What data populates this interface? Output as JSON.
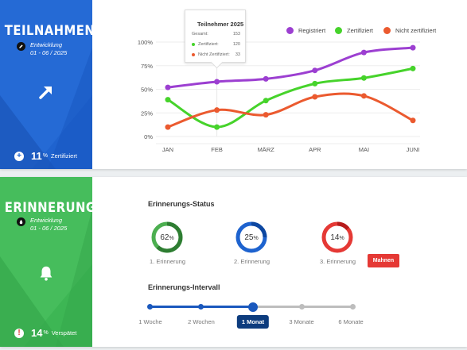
{
  "participation": {
    "title": "TEILNAHMEN",
    "subtitle_line1": "Entwicklung",
    "subtitle_line2": "01 - 06 / 2025",
    "trend_icon": "arrow-up-right-icon",
    "stat_value": "11",
    "stat_unit": "%",
    "stat_label": "Zertifiziert",
    "stat_icon": "plus-circle-icon",
    "color": "#1f63cf"
  },
  "chart_data": {
    "type": "line",
    "categories": [
      "JAN",
      "FEB",
      "MÄRZ",
      "APR",
      "MAI",
      "JUNI"
    ],
    "yticks": [
      "0%",
      "25%",
      "50%",
      "75%",
      "100%"
    ],
    "ylim": [
      0,
      100
    ],
    "legend_position": "top-right",
    "series": [
      {
        "name": "Registriert",
        "color": "#9c3fd1",
        "values": [
          52,
          58,
          61,
          70,
          89,
          94
        ]
      },
      {
        "name": "Zertifiziert",
        "color": "#46d32b",
        "values": [
          39,
          10,
          38,
          56,
          62,
          72
        ]
      },
      {
        "name": "Nicht zertifiziert",
        "color": "#eb5a2f",
        "values": [
          10,
          28,
          23,
          42,
          43,
          17
        ]
      }
    ]
  },
  "tooltip": {
    "title": "Teilnehmer 2025",
    "rows": [
      {
        "label": "Gesamt:",
        "value": "153",
        "color": ""
      },
      {
        "label": "Zertifiziert:",
        "value": "120",
        "color": "#46d32b"
      },
      {
        "label": "Nicht Zertifiziert:",
        "value": "33",
        "color": "#eb5a2f"
      }
    ]
  },
  "reminders": {
    "title": "ERINNERUNGEN",
    "subtitle_line1": "Entwicklung",
    "subtitle_line2": "01 - 06 / 2025",
    "center_icon": "bell-icon",
    "stat_value": "14",
    "stat_unit": "%",
    "stat_label": "Verspätet",
    "stat_icon": "exclamation-circle-icon",
    "color": "#3db654",
    "status_title": "Erinnerungs-Status",
    "donuts": [
      {
        "value": 62,
        "label": "1. Erinnerung",
        "color": "#2e7d32",
        "track": "#4caf50"
      },
      {
        "value": 25,
        "label": "2. Erinnerung",
        "color": "#0d47a1",
        "track": "#1e63cf"
      },
      {
        "value": 14,
        "label": "3. Erinnerung",
        "color": "#b71c1c",
        "track": "#e53935"
      }
    ],
    "pct_sign": "%",
    "remind_button": "Mahnen",
    "interval_title": "Erinnerungs-Intervall",
    "interval_options": [
      "1 Woche",
      "2 Wochen",
      "1 Monat",
      "3 Monate",
      "6 Monate"
    ],
    "interval_selected": 2
  }
}
